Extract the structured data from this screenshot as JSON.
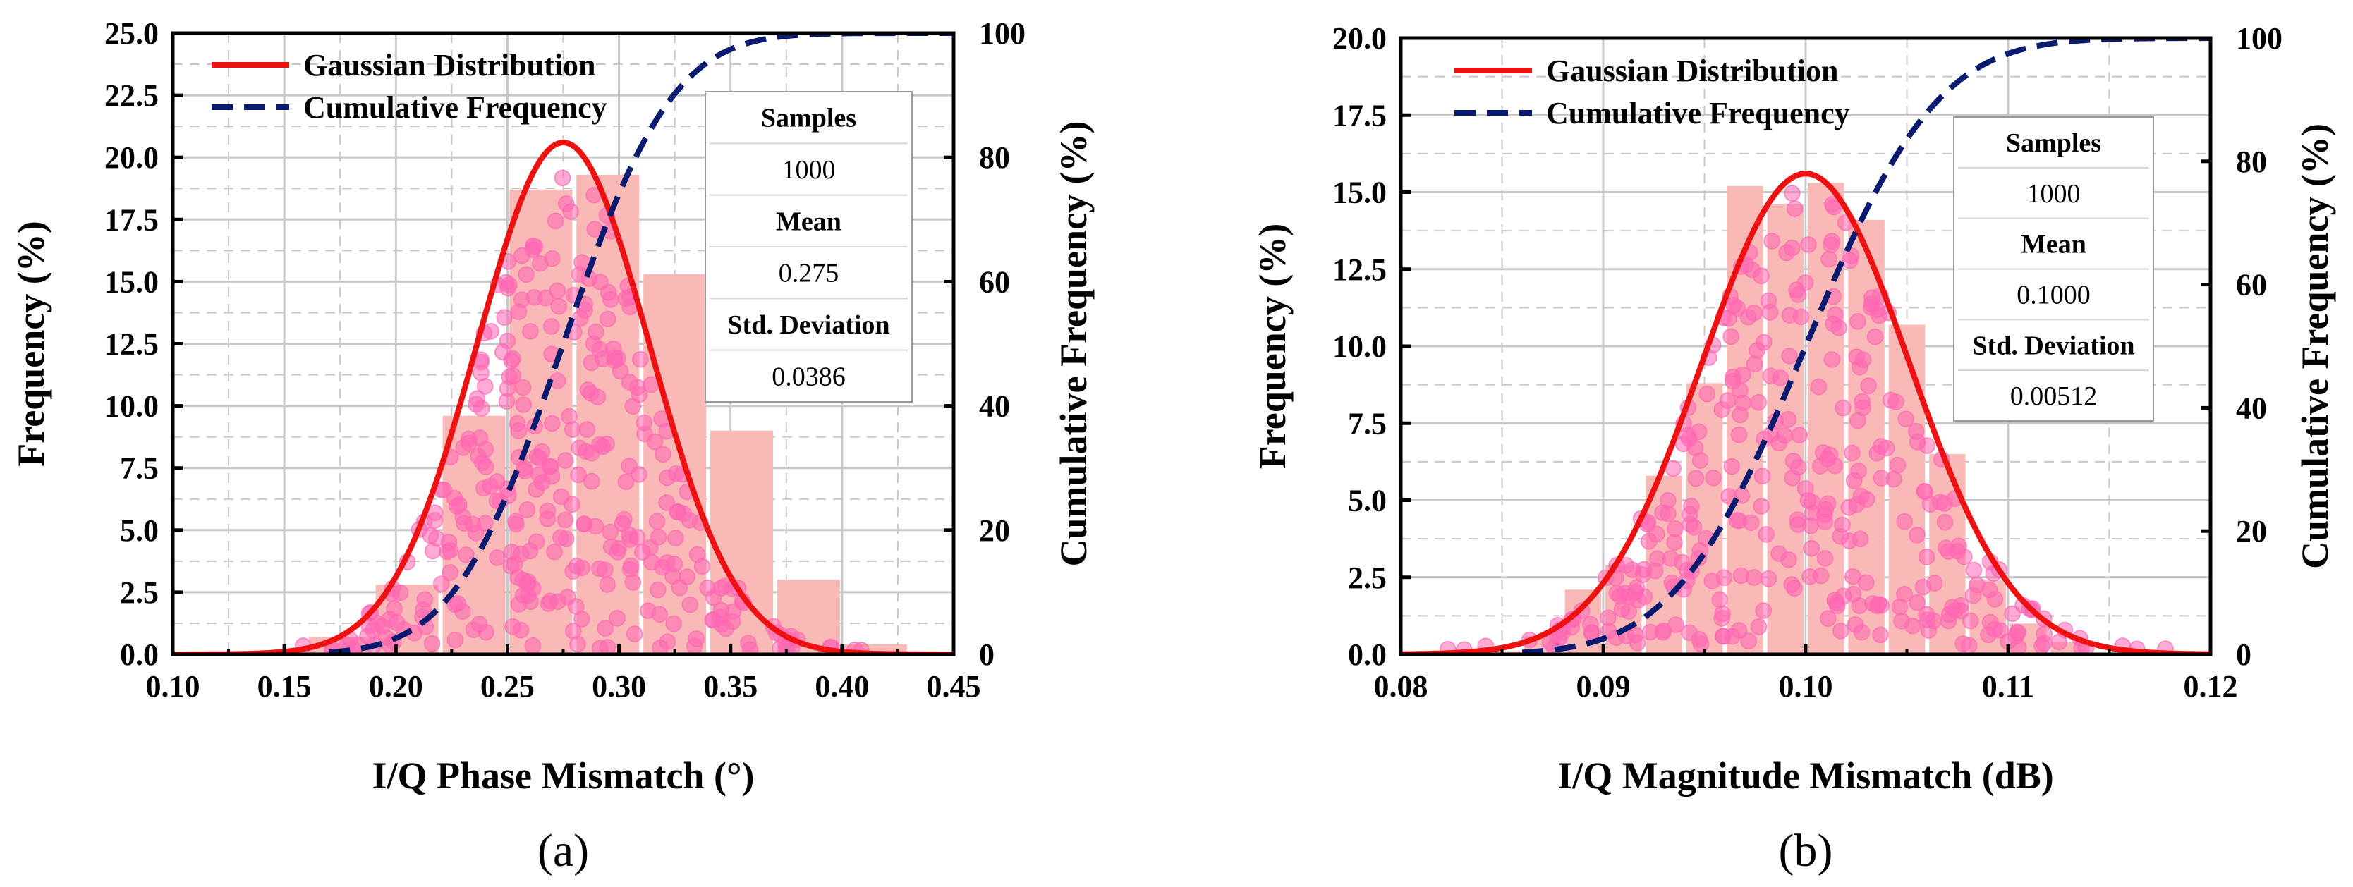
{
  "chart_data": [
    {
      "type": "histogram",
      "panel_label": "(a)",
      "xlabel": "I/Q Phase Mismatch (°)",
      "ylabel": "Frequency (%)",
      "y2label": "Cumulative Frequency (%)",
      "xlim": [
        0.1,
        0.45
      ],
      "ylim": [
        0,
        25
      ],
      "y2lim": [
        0,
        100
      ],
      "xticks": [
        "0.10",
        "0.15",
        "0.20",
        "0.25",
        "0.30",
        "0.35",
        "0.40",
        "0.45"
      ],
      "yticks": [
        "0.0",
        "2.5",
        "5.0",
        "7.5",
        "10.0",
        "12.5",
        "15.0",
        "17.5",
        "20.0",
        "22.5",
        "25.0"
      ],
      "y2ticks": [
        "0",
        "20",
        "40",
        "60",
        "80",
        "100"
      ],
      "bins": [
        {
          "x0": 0.13,
          "x1": 0.16,
          "value": 0.1
        },
        {
          "x0": 0.16,
          "x1": 0.19,
          "value": 0.7
        },
        {
          "x0": 0.19,
          "x1": 0.22,
          "value": 2.8
        },
        {
          "x0": 0.22,
          "x1": 0.25,
          "value": 9.6
        },
        {
          "x0": 0.25,
          "x1": 0.28,
          "value": 18.7
        },
        {
          "x0": 0.28,
          "x1": 0.31,
          "value": 19.3
        },
        {
          "x0": 0.31,
          "x1": 0.34,
          "value": 15.3
        },
        {
          "x0": 0.34,
          "x1": 0.37,
          "value": 9.0
        },
        {
          "x0": 0.37,
          "x1": 0.4,
          "value": 3.0
        },
        {
          "x0": 0.4,
          "x1": 0.43,
          "value": 0.4
        }
      ],
      "gaussian": {
        "mean": 0.275,
        "std": 0.0386,
        "peak": 20.6
      },
      "scatter_range": [
        0.15,
        0.41
      ],
      "stats": {
        "samples_label": "Samples",
        "samples": "1000",
        "mean_label": "Mean",
        "mean": "0.275",
        "std_label": "Std. Deviation",
        "std": "0.0386"
      },
      "legend": [
        "Gaussian Distribution",
        "Cumulative Frequency"
      ],
      "legend_position": "top-left",
      "colors": {
        "bar": "#f9b9b7",
        "scatter": "#ff66b3",
        "gaussian": "#ee1111",
        "cumulative": "#0a1a6e",
        "grid": "#c8c8c8"
      }
    },
    {
      "type": "histogram",
      "panel_label": "(b)",
      "xlabel": "I/Q Magnitude Mismatch (dB)",
      "ylabel": "Frequency (%)",
      "y2label": "Cumulative Frequency (%)",
      "xlim": [
        0.08,
        0.12
      ],
      "ylim": [
        0,
        20
      ],
      "y2lim": [
        0,
        100
      ],
      "xticks": [
        "0.08",
        "0.09",
        "0.10",
        "0.11",
        "0.12"
      ],
      "yticks": [
        "0.0",
        "2.5",
        "5.0",
        "7.5",
        "10.0",
        "12.5",
        "15.0",
        "17.5",
        "20.0"
      ],
      "y2ticks": [
        "0",
        "20",
        "40",
        "60",
        "80",
        "100"
      ],
      "bins": [
        {
          "x0": 0.084,
          "x1": 0.086,
          "value": 0.1
        },
        {
          "x0": 0.086,
          "x1": 0.088,
          "value": 0.6
        },
        {
          "x0": 0.088,
          "x1": 0.09,
          "value": 2.1
        },
        {
          "x0": 0.09,
          "x1": 0.092,
          "value": 2.9
        },
        {
          "x0": 0.092,
          "x1": 0.094,
          "value": 5.8
        },
        {
          "x0": 0.094,
          "x1": 0.096,
          "value": 8.8
        },
        {
          "x0": 0.096,
          "x1": 0.098,
          "value": 15.2
        },
        {
          "x0": 0.098,
          "x1": 0.1,
          "value": 14.6
        },
        {
          "x0": 0.1,
          "x1": 0.102,
          "value": 15.3
        },
        {
          "x0": 0.102,
          "x1": 0.104,
          "value": 14.1
        },
        {
          "x0": 0.104,
          "x1": 0.106,
          "value": 10.7
        },
        {
          "x0": 0.106,
          "x1": 0.108,
          "value": 6.5
        },
        {
          "x0": 0.108,
          "x1": 0.11,
          "value": 2.4
        },
        {
          "x0": 0.11,
          "x1": 0.112,
          "value": 1.0
        },
        {
          "x0": 0.112,
          "x1": 0.114,
          "value": 0.4
        }
      ],
      "gaussian": {
        "mean": 0.1,
        "std": 0.00512,
        "peak": 15.6
      },
      "scatter_range": [
        0.082,
        0.118
      ],
      "stats": {
        "samples_label": "Samples",
        "samples": "1000",
        "mean_label": "Mean",
        "mean": "0.1000",
        "std_label": "Std. Deviation",
        "std": "0.00512"
      },
      "legend": [
        "Gaussian Distribution",
        "Cumulative Frequency"
      ],
      "legend_position": "top-left",
      "colors": {
        "bar": "#f9b9b7",
        "scatter": "#ff66b3",
        "gaussian": "#ee1111",
        "cumulative": "#0a1a6e",
        "grid": "#c8c8c8"
      }
    }
  ]
}
